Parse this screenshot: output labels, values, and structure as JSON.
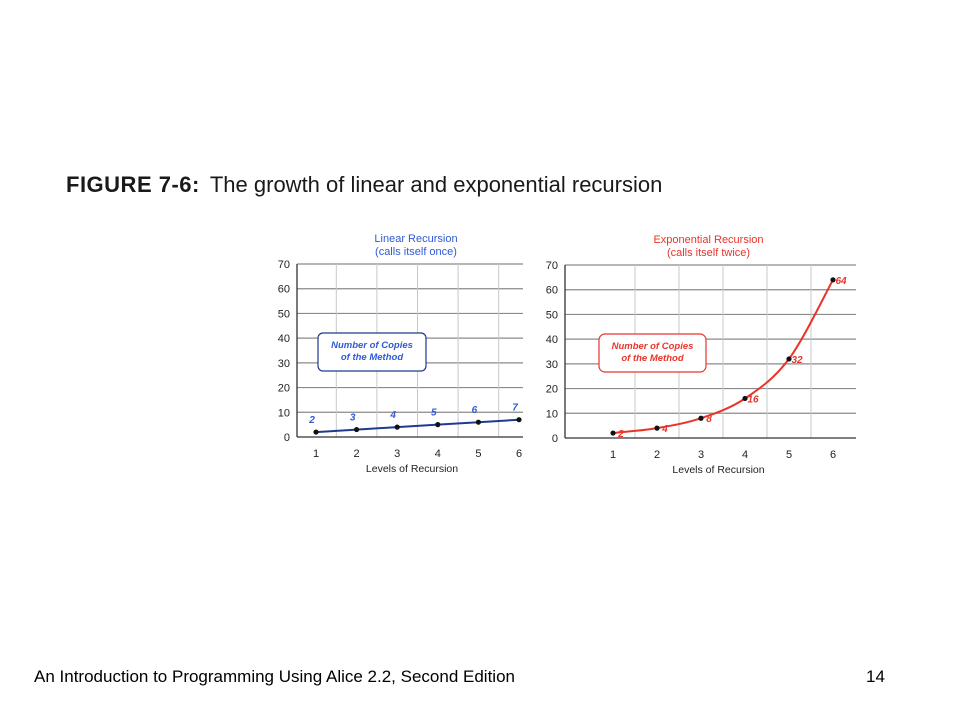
{
  "figure": {
    "label": "FIGURE 7-6:",
    "caption": "The growth of linear and exponential recursion"
  },
  "footer": {
    "book_title": "An Introduction to Programming Using Alice 2.2, Second Edition",
    "page_number": "14"
  },
  "chart_data": [
    {
      "type": "line",
      "title": "Linear Recursion",
      "subtitle": "(calls itself once)",
      "xlabel": "Levels of Recursion",
      "ylabel": "",
      "x": [
        1,
        2,
        3,
        4,
        5,
        6
      ],
      "series": [
        {
          "values": [
            2,
            3,
            4,
            5,
            6,
            7
          ]
        }
      ],
      "data_labels": [
        "2",
        "3",
        "4",
        "5",
        "6",
        "7"
      ],
      "ylim": [
        0,
        70
      ],
      "yticks": [
        0,
        10,
        20,
        30,
        40,
        50,
        60,
        70
      ],
      "grid": true,
      "annotation": [
        "Number of Copies",
        "of the Method"
      ],
      "color": "#1f3a93",
      "accent_text_color": "#2f5bd4"
    },
    {
      "type": "line",
      "title": "Exponential Recursion",
      "subtitle": "(calls itself twice)",
      "xlabel": "Levels of Recursion",
      "ylabel": "",
      "x": [
        1,
        2,
        3,
        4,
        5,
        6
      ],
      "series": [
        {
          "values": [
            2,
            4,
            8,
            16,
            32,
            64
          ]
        }
      ],
      "data_labels": [
        "2",
        "4",
        "8",
        "16",
        "32",
        "64"
      ],
      "ylim": [
        0,
        70
      ],
      "yticks": [
        0,
        10,
        20,
        30,
        40,
        50,
        60,
        70
      ],
      "grid": true,
      "annotation": [
        "Number of Copies",
        "of the Method"
      ],
      "color": "#e8342a",
      "accent_text_color": "#e8342a"
    }
  ]
}
